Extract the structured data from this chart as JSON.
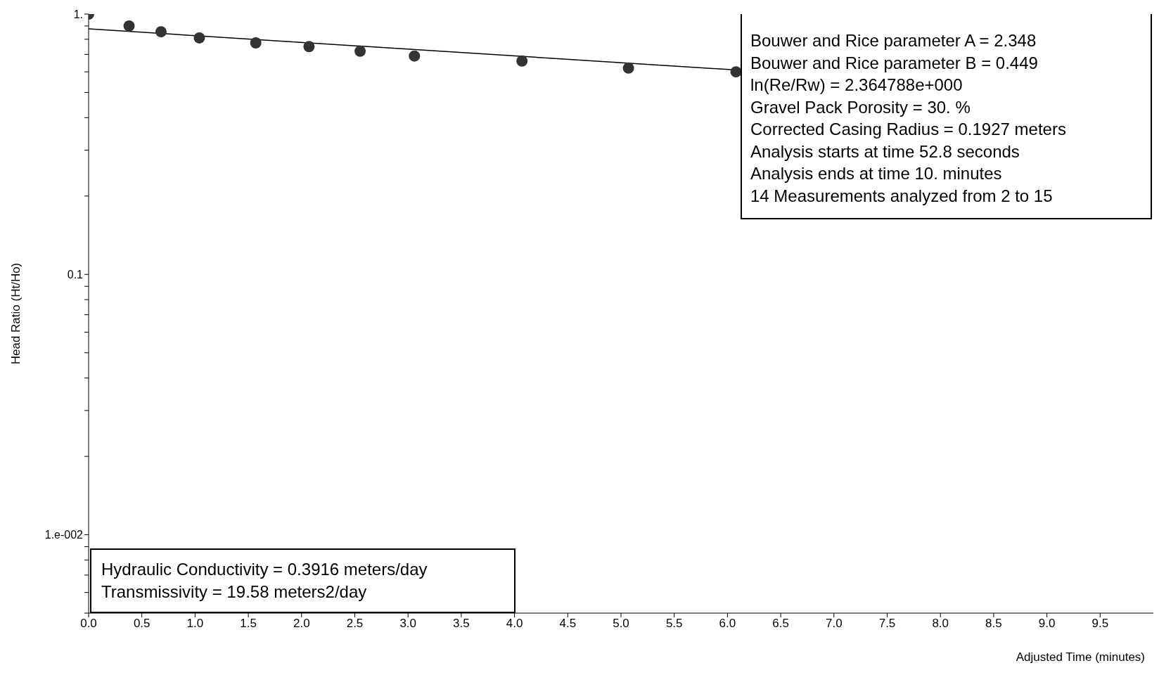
{
  "chart_data": {
    "type": "scatter",
    "xlabel": "Adjusted Time (minutes)",
    "ylabel": "Head Ratio (Ht/Ho)",
    "xlim": [
      0,
      10
    ],
    "ylim": [
      0.005,
      1
    ],
    "log": "y",
    "grid": false,
    "legend": false,
    "marker": "circle",
    "xticks": [
      {
        "value": 0,
        "label": "0.0"
      },
      0.5,
      {
        "value": 1,
        "label": "1.0"
      },
      1.5,
      {
        "value": 2,
        "label": "2.0"
      },
      2.5,
      {
        "value": 3,
        "label": "3.0"
      },
      3.5,
      {
        "value": 4,
        "label": "4.0"
      },
      4.5,
      {
        "value": 5,
        "label": "5.0"
      },
      5.5,
      {
        "value": 6,
        "label": "6.0"
      },
      6.5,
      {
        "value": 7,
        "label": "7.0"
      },
      7.5,
      {
        "value": 8,
        "label": "8.0"
      },
      8.5,
      {
        "value": 9,
        "label": "9.0"
      },
      9.5
    ],
    "yticks": [
      {
        "value": 0.005,
        "label": null
      },
      {
        "value": 0.006,
        "label": null
      },
      {
        "value": 0.007,
        "label": null
      },
      {
        "value": 0.008,
        "label": null
      },
      {
        "value": 0.009,
        "label": null
      },
      {
        "value": 0.01,
        "label": "1.e-002"
      },
      {
        "value": 0.02,
        "label": null
      },
      {
        "value": 0.03,
        "label": null
      },
      {
        "value": 0.04,
        "label": null
      },
      {
        "value": 0.05,
        "label": null
      },
      {
        "value": 0.06,
        "label": null
      },
      {
        "value": 0.07,
        "label": null
      },
      {
        "value": 0.08,
        "label": null
      },
      {
        "value": 0.09,
        "label": null
      },
      0.1,
      {
        "value": 0.2,
        "label": null
      },
      {
        "value": 0.3,
        "label": null
      },
      {
        "value": 0.4,
        "label": null
      },
      {
        "value": 0.5,
        "label": null
      },
      {
        "value": 0.6,
        "label": null
      },
      {
        "value": 0.7,
        "label": null
      },
      {
        "value": 0.8,
        "label": null
      },
      {
        "value": 0.9,
        "label": null
      },
      {
        "value": 1,
        "label": "1."
      }
    ],
    "series": [
      {
        "color": "#333333",
        "x": [
          0,
          0.38,
          0.68,
          1.04,
          1.57,
          2.07,
          2.55,
          3.06,
          4.07,
          5.07,
          6.08
        ],
        "values": [
          1,
          0.9,
          0.855,
          0.81,
          0.775,
          0.75,
          0.72,
          0.69,
          0.66,
          0.62,
          0.6
        ]
      },
      {
        "type": "line",
        "color": "#000000",
        "marker": "none",
        "x": [
          0,
          6.08
        ],
        "values": [
          0.877,
          0.61
        ]
      }
    ],
    "annotations": [
      "Bouwer and Rice parameter A = 2.348\nBouwer and Rice parameter B = 0.449\nln(Re/Rw) = 2.364788e+000\nGravel Pack Porosity = 30. %\nCorrected Casing Radius = 0.1927 meters\nAnalysis starts at time 52.8 seconds\nAnalysis ends at time 10. minutes\n14 Measurements analyzed from 2 to 15",
      "Hydraulic Conductivity = 0.3916 meters/day\nTransmissivity = 19.58 meters2/day"
    ]
  }
}
